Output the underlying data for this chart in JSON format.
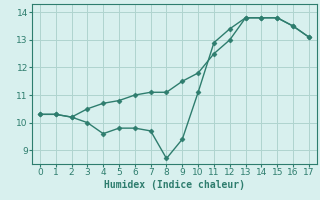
{
  "x": [
    0,
    1,
    2,
    3,
    4,
    5,
    6,
    7,
    8,
    9,
    10,
    11,
    12,
    13,
    14,
    15,
    16,
    17
  ],
  "line1_y": [
    10.3,
    10.3,
    10.2,
    10.5,
    10.7,
    10.8,
    11.0,
    11.1,
    11.1,
    11.5,
    11.8,
    12.5,
    13.0,
    13.8,
    13.8,
    13.8,
    13.5,
    13.1
  ],
  "line2_y": [
    10.3,
    10.3,
    10.2,
    10.0,
    9.6,
    9.8,
    9.8,
    9.7,
    8.7,
    9.4,
    11.1,
    12.9,
    13.4,
    13.8,
    13.8,
    13.8,
    13.5,
    13.1
  ],
  "line_color": "#2e7d6e",
  "bg_color": "#d8f0ee",
  "grid_color": "#afd4cf",
  "xlabel": "Humidex (Indice chaleur)",
  "xlabel_fontsize": 7,
  "tick_fontsize": 6.5,
  "xlim": [
    -0.5,
    17.5
  ],
  "ylim": [
    8.5,
    14.3
  ],
  "yticks": [
    9,
    10,
    11,
    12,
    13,
    14
  ],
  "xticks": [
    0,
    1,
    2,
    3,
    4,
    5,
    6,
    7,
    8,
    9,
    10,
    11,
    12,
    13,
    14,
    15,
    16,
    17
  ],
  "marker": "D",
  "marker_size": 2.5,
  "line_width": 1.0
}
